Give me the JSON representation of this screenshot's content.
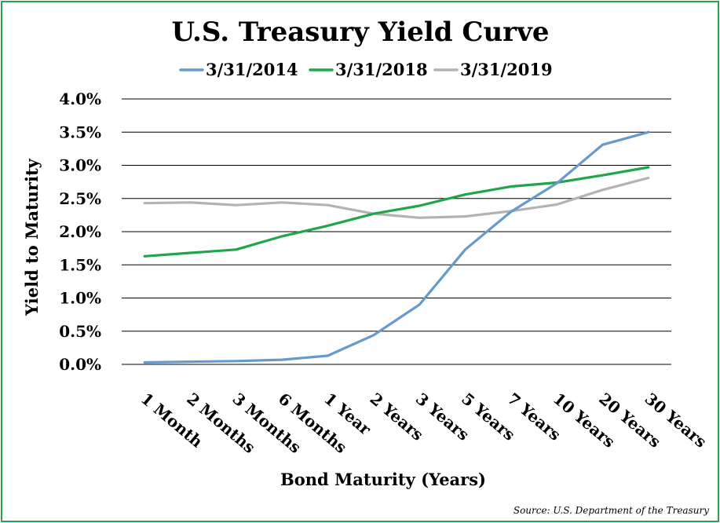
{
  "chart_data": {
    "type": "line",
    "title": "U.S. Treasury Yield Curve",
    "xlabel": "Bond Maturity (Years)",
    "ylabel": "Yield to Maturity",
    "ylim": [
      0,
      4
    ],
    "yticks": [
      "0.0%",
      "0.5%",
      "1.0%",
      "1.5%",
      "2.0%",
      "2.5%",
      "3.0%",
      "3.5%",
      "4.0%"
    ],
    "grid": true,
    "legend_position": "top",
    "categories": [
      "1 Month",
      "2 Months",
      "3 Months",
      "6 Months",
      "1 Year",
      "2 Years",
      "3 Years",
      "5 Years",
      "7 Years",
      "10 Years",
      "20 Years",
      "30 Years"
    ],
    "series": [
      {
        "name": "3/31/2014",
        "color": "#6699cc",
        "values": [
          0.03,
          0.04,
          0.05,
          0.07,
          0.13,
          0.44,
          0.9,
          1.73,
          2.3,
          2.73,
          3.31,
          3.5
        ]
      },
      {
        "name": "3/31/2018",
        "color": "#1fa64a",
        "values": [
          1.63,
          1.68,
          1.73,
          1.93,
          2.09,
          2.27,
          2.39,
          2.56,
          2.68,
          2.74,
          2.85,
          2.97
        ]
      },
      {
        "name": "3/31/2019",
        "color": "#b3b3b3",
        "values": [
          2.43,
          2.44,
          2.4,
          2.44,
          2.4,
          2.27,
          2.21,
          2.23,
          2.31,
          2.41,
          2.63,
          2.81
        ]
      }
    ]
  },
  "source": "Source:  U.S. Department of the Treasury"
}
